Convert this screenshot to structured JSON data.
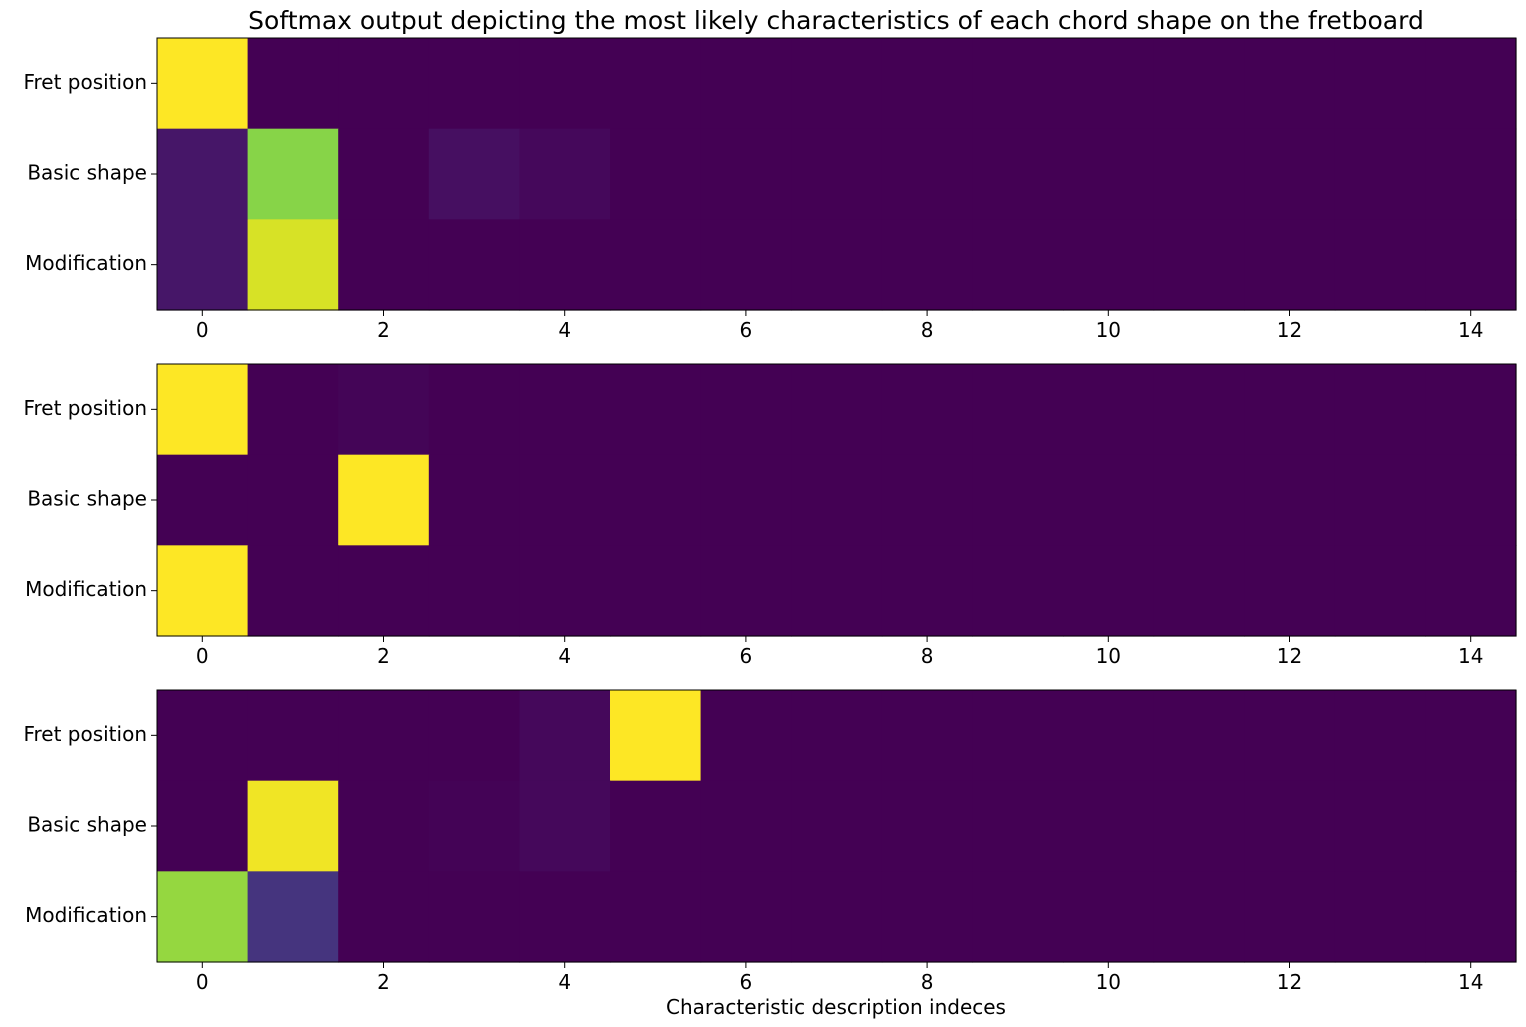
{
  "chart_data": {
    "type": "heatmap",
    "title": "Softmax output depicting the most likely characteristics of each chord shape on the fretboard",
    "xlabel": "Characteristic description indeces",
    "row_labels": [
      "Fret position",
      "Basic shape",
      "Modification"
    ],
    "xlim": [
      -0.5,
      14.5
    ],
    "x_ticks": [
      0,
      2,
      4,
      6,
      8,
      10,
      12,
      14
    ],
    "colormap": "viridis",
    "value_range": [
      0,
      1
    ],
    "panels": [
      {
        "values": [
          [
            1.0,
            0,
            0,
            0,
            0,
            0,
            0,
            0,
            0,
            0,
            0,
            0,
            0,
            0,
            0
          ],
          [
            0.06,
            0.82,
            0,
            0.04,
            0.02,
            0,
            0,
            0,
            0,
            0,
            0,
            0,
            0,
            0,
            0
          ],
          [
            0.06,
            0.94,
            0,
            0,
            0,
            0,
            0,
            0,
            0,
            0,
            0,
            0,
            0,
            0,
            0
          ]
        ]
      },
      {
        "values": [
          [
            1.0,
            0,
            0.01,
            0,
            0,
            0,
            0,
            0,
            0,
            0,
            0,
            0,
            0,
            0,
            0
          ],
          [
            0,
            0,
            1.0,
            0,
            0,
            0,
            0,
            0,
            0,
            0,
            0,
            0,
            0,
            0,
            0
          ],
          [
            1.0,
            0,
            0,
            0,
            0,
            0,
            0,
            0,
            0,
            0,
            0,
            0,
            0,
            0,
            0
          ]
        ]
      },
      {
        "values": [
          [
            0,
            0,
            0,
            0,
            0.02,
            1.0,
            0,
            0,
            0,
            0,
            0,
            0,
            0,
            0,
            0
          ],
          [
            0,
            0.98,
            0,
            0.005,
            0.02,
            0,
            0,
            0,
            0,
            0,
            0,
            0,
            0,
            0,
            0
          ],
          [
            0.84,
            0.15,
            0,
            0,
            0,
            0,
            0,
            0,
            0,
            0,
            0,
            0,
            0,
            0,
            0
          ]
        ]
      }
    ]
  }
}
